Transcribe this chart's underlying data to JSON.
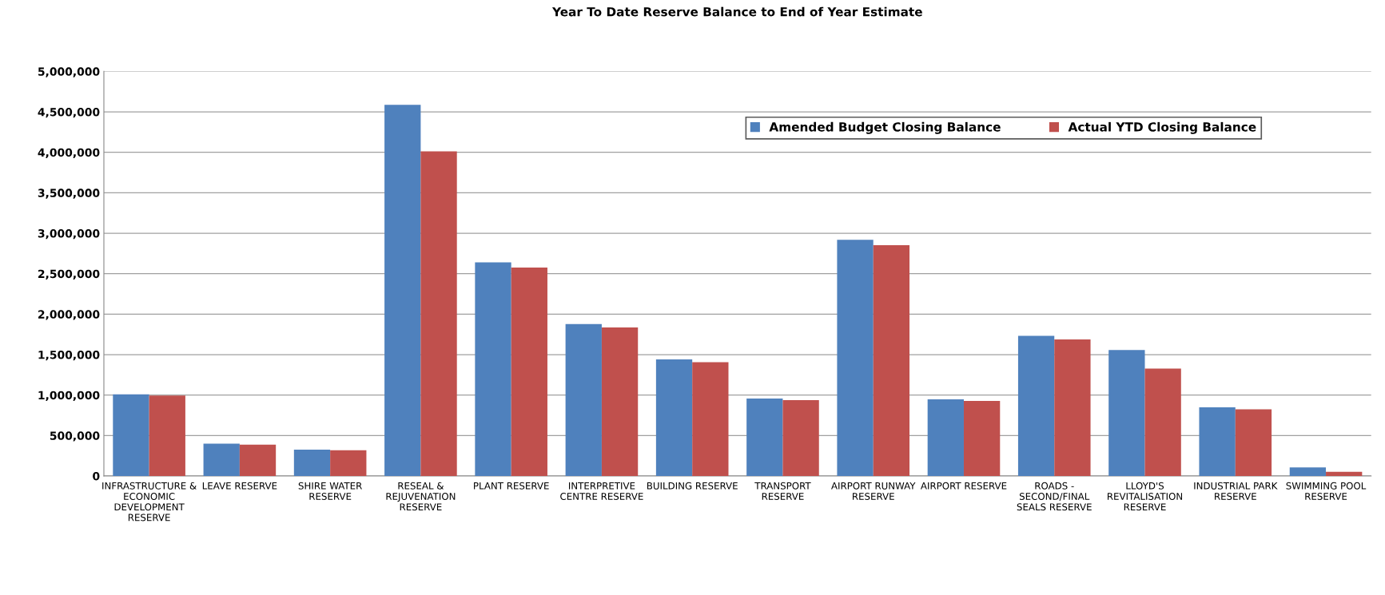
{
  "chart_data": {
    "type": "bar",
    "title": "Year To Date Reserve Balance to End of Year Estimate",
    "categories": [
      "INFRASTRUCTURE & ECONOMIC DEVELOPMENT RESERVE",
      "LEAVE RESERVE",
      "SHIRE WATER RESERVE",
      "RESEAL & REJUVENATION RESERVE",
      "PLANT RESERVE",
      "INTERPRETIVE CENTRE RESERVE",
      "BUILDING RESERVE",
      "TRANSPORT RESERVE",
      "AIRPORT RUNWAY RESERVE",
      "AIRPORT RESERVE",
      "ROADS - SECOND/FINAL SEALS RESERVE",
      "LLOYD'S REVITALISATION RESERVE",
      "INDUSTRIAL PARK RESERVE",
      "SWIMMING POOL RESERVE"
    ],
    "series": [
      {
        "name": "Amended Budget Closing Balance",
        "color": "#4f81bd",
        "values": [
          1010000,
          400000,
          326000,
          4588000,
          2639000,
          1877000,
          1441000,
          957000,
          2920000,
          947000,
          1733000,
          1558000,
          848000,
          106000
        ]
      },
      {
        "name": "Actual YTD Closing Balance",
        "color": "#c0504d",
        "values": [
          995000,
          388000,
          319000,
          4012000,
          2577000,
          1836000,
          1407000,
          937000,
          2852000,
          927000,
          1688000,
          1328000,
          824000,
          51000
        ]
      }
    ],
    "ylim": [
      0,
      5000000
    ],
    "yticks": [
      {
        "value": 0,
        "label": "0"
      },
      {
        "value": 500000,
        "label": "500,000"
      },
      {
        "value": 1000000,
        "label": "1,000,000"
      },
      {
        "value": 1500000,
        "label": "1,500,000"
      },
      {
        "value": 2000000,
        "label": "2,000,000"
      },
      {
        "value": 2500000,
        "label": "2,500,000"
      },
      {
        "value": 3000000,
        "label": "3,000,000"
      },
      {
        "value": 3500000,
        "label": "3,500,000"
      },
      {
        "value": 4000000,
        "label": "4,000,000"
      },
      {
        "value": 4500000,
        "label": "4,500,000"
      },
      {
        "value": 5000000,
        "label": "5,000,000"
      }
    ],
    "grid": "y",
    "legend": "top right"
  }
}
